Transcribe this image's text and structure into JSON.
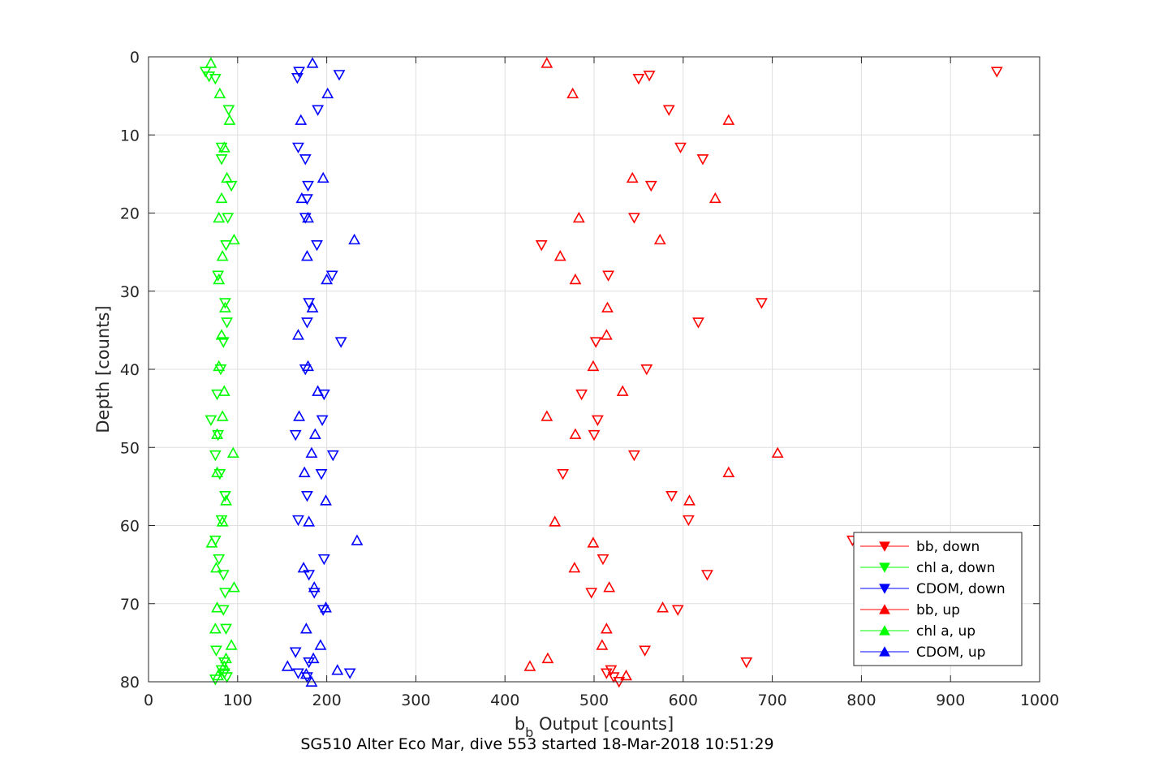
{
  "chart_data": {
    "type": "scatter",
    "xlabel_main": "b",
    "xlabel_sub": "b",
    "xlabel_rest": " Output [counts]",
    "ylabel": "Depth [counts]",
    "caption": "SG510 Alter Eco Mar, dive 553 started 18-Mar-2018 10:51:29",
    "xlim": [
      0,
      1000
    ],
    "ylim": [
      0,
      80
    ],
    "y_reversed": true,
    "grid": true,
    "legend_position": "bottom-right",
    "xticks": [
      "0",
      "100",
      "200",
      "300",
      "400",
      "500",
      "600",
      "700",
      "800",
      "900",
      "1000"
    ],
    "yticks": [
      "0",
      "10",
      "20",
      "30",
      "40",
      "50",
      "60",
      "70",
      "80"
    ],
    "series": [
      {
        "name": "bb, down",
        "color": "#ff0000",
        "marker": "triangle-down",
        "points": [
          [
            952,
            1.9
          ],
          [
            562,
            2.4
          ],
          [
            550,
            2.8
          ],
          [
            584,
            6.8
          ],
          [
            597,
            11.6
          ],
          [
            622,
            13.1
          ],
          [
            564,
            16.5
          ],
          [
            545,
            20.6
          ],
          [
            441,
            24.1
          ],
          [
            516,
            28.0
          ],
          [
            688,
            31.5
          ],
          [
            617,
            34.0
          ],
          [
            502,
            36.5
          ],
          [
            559,
            40.0
          ],
          [
            486,
            43.2
          ],
          [
            504,
            46.5
          ],
          [
            500,
            48.4
          ],
          [
            545,
            51.0
          ],
          [
            465,
            53.4
          ],
          [
            587,
            56.2
          ],
          [
            606,
            59.3
          ],
          [
            790,
            61.9
          ],
          [
            510,
            64.3
          ],
          [
            627,
            66.3
          ],
          [
            497,
            68.6
          ],
          [
            594,
            70.8
          ],
          [
            557,
            76.0
          ],
          [
            671,
            77.5
          ],
          [
            519,
            78.5
          ],
          [
            514,
            78.9
          ],
          [
            522,
            79.4
          ],
          [
            528,
            80.0
          ]
        ]
      },
      {
        "name": "chl a, down",
        "color": "#00ff00",
        "marker": "triangle-down",
        "points": [
          [
            64,
            1.9
          ],
          [
            68,
            2.5
          ],
          [
            75,
            2.8
          ],
          [
            90,
            6.8
          ],
          [
            82,
            11.6
          ],
          [
            82,
            13.1
          ],
          [
            93,
            16.5
          ],
          [
            89,
            20.6
          ],
          [
            87,
            24.1
          ],
          [
            78,
            28.0
          ],
          [
            86,
            31.5
          ],
          [
            88,
            34.0
          ],
          [
            84,
            36.5
          ],
          [
            81,
            40.0
          ],
          [
            77,
            43.2
          ],
          [
            70,
            46.5
          ],
          [
            78,
            48.4
          ],
          [
            75,
            51.0
          ],
          [
            80,
            53.4
          ],
          [
            86,
            56.2
          ],
          [
            82,
            59.3
          ],
          [
            75,
            61.9
          ],
          [
            79,
            64.3
          ],
          [
            84,
            66.3
          ],
          [
            86,
            68.6
          ],
          [
            84,
            70.8
          ],
          [
            87,
            73.2
          ],
          [
            76,
            76.0
          ],
          [
            85,
            77.5
          ],
          [
            82,
            78.5
          ],
          [
            85,
            78.9
          ],
          [
            88,
            79.4
          ],
          [
            75,
            79.7
          ]
        ]
      },
      {
        "name": "CDOM, down",
        "color": "#0000ff",
        "marker": "triangle-down",
        "points": [
          [
            214,
            2.3
          ],
          [
            169,
            1.9
          ],
          [
            167,
            2.7
          ],
          [
            190,
            6.8
          ],
          [
            168,
            11.6
          ],
          [
            176,
            13.1
          ],
          [
            179,
            16.5
          ],
          [
            178,
            18.2
          ],
          [
            176,
            20.6
          ],
          [
            189,
            24.1
          ],
          [
            206,
            28.0
          ],
          [
            180,
            31.5
          ],
          [
            178,
            34.0
          ],
          [
            216,
            36.5
          ],
          [
            176,
            40.0
          ],
          [
            197,
            43.2
          ],
          [
            195,
            46.5
          ],
          [
            165,
            48.4
          ],
          [
            207,
            51.0
          ],
          [
            194,
            53.4
          ],
          [
            178,
            56.2
          ],
          [
            168,
            59.3
          ],
          [
            197,
            64.3
          ],
          [
            180,
            66.3
          ],
          [
            186,
            68.6
          ],
          [
            196,
            70.8
          ],
          [
            165,
            76.2
          ],
          [
            180,
            77.5
          ],
          [
            168,
            78.9
          ],
          [
            178,
            79.4
          ],
          [
            226,
            78.9
          ]
        ]
      },
      {
        "name": "bb, up",
        "color": "#ff0000",
        "marker": "triangle-up",
        "points": [
          [
            447,
            0.8
          ],
          [
            476,
            4.7
          ],
          [
            651,
            8.1
          ],
          [
            543,
            15.5
          ],
          [
            636,
            18.1
          ],
          [
            483,
            20.6
          ],
          [
            574,
            23.4
          ],
          [
            462,
            25.5
          ],
          [
            479,
            28.5
          ],
          [
            515,
            32.1
          ],
          [
            514,
            35.6
          ],
          [
            499,
            39.6
          ],
          [
            532,
            42.8
          ],
          [
            447,
            46.0
          ],
          [
            479,
            48.3
          ],
          [
            706,
            50.7
          ],
          [
            651,
            53.2
          ],
          [
            607,
            56.8
          ],
          [
            456,
            59.5
          ],
          [
            499,
            62.2
          ],
          [
            478,
            65.4
          ],
          [
            517,
            67.9
          ],
          [
            577,
            70.5
          ],
          [
            514,
            73.2
          ],
          [
            509,
            75.3
          ],
          [
            448,
            77.0
          ],
          [
            428,
            78.0
          ],
          [
            536,
            79.2
          ]
        ]
      },
      {
        "name": "chl a, up",
        "color": "#00ff00",
        "marker": "triangle-up",
        "points": [
          [
            70,
            0.8
          ],
          [
            80,
            4.7
          ],
          [
            91,
            8.1
          ],
          [
            85,
            11.6
          ],
          [
            88,
            15.5
          ],
          [
            82,
            18.1
          ],
          [
            79,
            20.6
          ],
          [
            96,
            23.4
          ],
          [
            83,
            25.5
          ],
          [
            79,
            28.5
          ],
          [
            86,
            32.1
          ],
          [
            82,
            35.6
          ],
          [
            79,
            39.6
          ],
          [
            85,
            42.8
          ],
          [
            83,
            46.0
          ],
          [
            77,
            48.3
          ],
          [
            95,
            50.7
          ],
          [
            77,
            53.2
          ],
          [
            87,
            56.8
          ],
          [
            83,
            59.5
          ],
          [
            71,
            62.2
          ],
          [
            76,
            65.4
          ],
          [
            96,
            67.9
          ],
          [
            77,
            70.5
          ],
          [
            75,
            73.2
          ],
          [
            93,
            75.3
          ],
          [
            87,
            77.0
          ],
          [
            85,
            78.0
          ],
          [
            78,
            79.2
          ]
        ]
      },
      {
        "name": "CDOM, up",
        "color": "#0000ff",
        "marker": "triangle-up",
        "points": [
          [
            184,
            0.8
          ],
          [
            201,
            4.7
          ],
          [
            171,
            8.1
          ],
          [
            196,
            15.5
          ],
          [
            172,
            18.1
          ],
          [
            179,
            20.6
          ],
          [
            231,
            23.4
          ],
          [
            178,
            25.5
          ],
          [
            200,
            28.5
          ],
          [
            184,
            32.1
          ],
          [
            168,
            35.6
          ],
          [
            179,
            39.6
          ],
          [
            190,
            42.8
          ],
          [
            169,
            46.0
          ],
          [
            187,
            48.3
          ],
          [
            183,
            50.7
          ],
          [
            175,
            53.2
          ],
          [
            199,
            56.8
          ],
          [
            180,
            59.5
          ],
          [
            234,
            61.9
          ],
          [
            174,
            65.4
          ],
          [
            186,
            67.9
          ],
          [
            199,
            70.5
          ],
          [
            177,
            73.2
          ],
          [
            193,
            75.3
          ],
          [
            185,
            77.0
          ],
          [
            156,
            78.0
          ],
          [
            212,
            78.5
          ],
          [
            177,
            79.0
          ],
          [
            183,
            80.0
          ]
        ]
      }
    ]
  }
}
